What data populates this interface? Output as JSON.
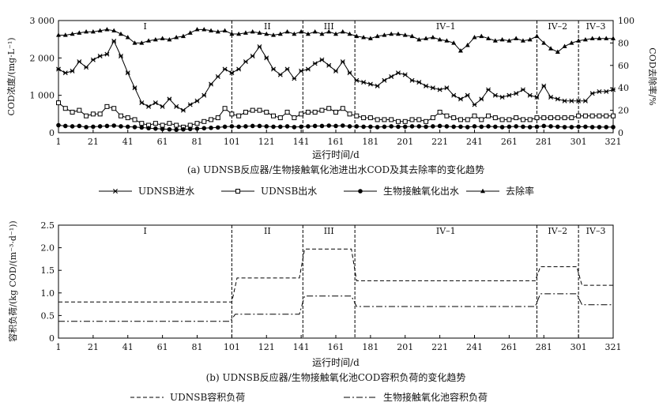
{
  "chart_data": [
    {
      "type": "line",
      "caption": "(a) UDNSB反应器/生物接触氧化池进出水COD及其去除率的变化趋势",
      "xlabel": "运行时间/d",
      "ylabel": "COD浓度/(mg·L⁻¹)",
      "ylabel_right": "COD去除率/%",
      "xlim": [
        1,
        321
      ],
      "ylim": [
        0,
        3000
      ],
      "ylim_right": [
        0,
        100
      ],
      "x_ticks": [
        "1",
        "21",
        "41",
        "61",
        "81",
        "101",
        "121",
        "141",
        "161",
        "181",
        "201",
        "221",
        "241",
        "261",
        "281",
        "301",
        "321"
      ],
      "y_ticks": [
        "0",
        "1 000",
        "2 000",
        "3 000"
      ],
      "y_ticks_right": [
        "0",
        "20",
        "40",
        "60",
        "80",
        "100"
      ],
      "phases": [
        {
          "label": "I",
          "start": 1,
          "end": 101
        },
        {
          "label": "II",
          "start": 101,
          "end": 142
        },
        {
          "label": "III",
          "start": 142,
          "end": 172
        },
        {
          "label": "IV–1",
          "start": 172,
          "end": 277
        },
        {
          "label": "IV–2",
          "start": 277,
          "end": 301
        },
        {
          "label": "IV–3",
          "start": 301,
          "end": 321
        }
      ],
      "series": [
        {
          "name": "UDNSB进水",
          "axis": "left",
          "marker": "x",
          "x": [
            1,
            5,
            9,
            13,
            17,
            21,
            25,
            29,
            33,
            37,
            41,
            45,
            49,
            53,
            57,
            61,
            65,
            69,
            73,
            77,
            81,
            85,
            89,
            93,
            97,
            101,
            105,
            109,
            113,
            117,
            121,
            125,
            129,
            133,
            137,
            141,
            145,
            149,
            153,
            157,
            161,
            165,
            169,
            173,
            177,
            181,
            185,
            189,
            193,
            197,
            201,
            205,
            209,
            213,
            217,
            221,
            225,
            229,
            233,
            237,
            241,
            245,
            249,
            253,
            257,
            261,
            265,
            269,
            273,
            277,
            281,
            285,
            289,
            293,
            297,
            301,
            305,
            309,
            313,
            317,
            321
          ],
          "values": [
            1700,
            1600,
            1650,
            1900,
            1750,
            1950,
            2050,
            2100,
            2450,
            2050,
            1600,
            1200,
            800,
            700,
            800,
            700,
            900,
            700,
            600,
            750,
            850,
            1000,
            1300,
            1500,
            1700,
            1600,
            1700,
            1900,
            2050,
            2300,
            2000,
            1700,
            1550,
            1700,
            1450,
            1650,
            1700,
            1850,
            1950,
            1800,
            1650,
            1900,
            1600,
            1400,
            1350,
            1300,
            1250,
            1400,
            1500,
            1600,
            1550,
            1400,
            1350,
            1250,
            1200,
            1150,
            1200,
            1000,
            900,
            1000,
            750,
            900,
            1150,
            1000,
            950,
            1000,
            1050,
            1150,
            1000,
            950,
            1250,
            950,
            900,
            850,
            850,
            850,
            850,
            1050,
            1100,
            1100,
            1150
          ]
        },
        {
          "name": "UDNSB出水",
          "axis": "left",
          "marker": "square",
          "x": [
            1,
            5,
            9,
            13,
            17,
            21,
            25,
            29,
            33,
            37,
            41,
            45,
            49,
            53,
            57,
            61,
            65,
            69,
            73,
            77,
            81,
            85,
            89,
            93,
            97,
            101,
            105,
            109,
            113,
            117,
            121,
            125,
            129,
            133,
            137,
            141,
            145,
            149,
            153,
            157,
            161,
            165,
            169,
            173,
            177,
            181,
            185,
            189,
            193,
            197,
            201,
            205,
            209,
            213,
            217,
            221,
            225,
            229,
            233,
            237,
            241,
            245,
            249,
            253,
            257,
            261,
            265,
            269,
            273,
            277,
            281,
            285,
            289,
            293,
            297,
            301,
            305,
            309,
            313,
            317,
            321
          ],
          "values": [
            800,
            650,
            550,
            600,
            450,
            500,
            500,
            700,
            650,
            450,
            400,
            350,
            250,
            200,
            250,
            200,
            250,
            200,
            150,
            200,
            250,
            300,
            350,
            400,
            650,
            500,
            450,
            550,
            600,
            600,
            550,
            450,
            400,
            550,
            400,
            500,
            550,
            550,
            600,
            650,
            550,
            650,
            500,
            450,
            400,
            400,
            350,
            350,
            350,
            300,
            300,
            350,
            350,
            300,
            400,
            550,
            450,
            400,
            350,
            350,
            450,
            350,
            450,
            400,
            350,
            350,
            400,
            350,
            350,
            400,
            400,
            400,
            400,
            400,
            400,
            450,
            450,
            450,
            450,
            450,
            450
          ]
        },
        {
          "name": "生物接触氧化出水",
          "axis": "left",
          "marker": "circle",
          "x": [
            1,
            5,
            9,
            13,
            17,
            21,
            25,
            29,
            33,
            37,
            41,
            45,
            49,
            53,
            57,
            61,
            65,
            69,
            73,
            77,
            81,
            85,
            89,
            93,
            97,
            101,
            105,
            109,
            113,
            117,
            121,
            125,
            129,
            133,
            137,
            141,
            145,
            149,
            153,
            157,
            161,
            165,
            169,
            173,
            177,
            181,
            185,
            189,
            193,
            197,
            201,
            205,
            209,
            213,
            217,
            221,
            225,
            229,
            233,
            237,
            241,
            245,
            249,
            253,
            257,
            261,
            265,
            269,
            273,
            277,
            281,
            285,
            289,
            293,
            297,
            301,
            305,
            309,
            313,
            317,
            321
          ],
          "values": [
            200,
            180,
            170,
            180,
            150,
            160,
            170,
            180,
            190,
            170,
            160,
            150,
            140,
            120,
            110,
            100,
            90,
            80,
            90,
            100,
            110,
            120,
            130,
            140,
            160,
            170,
            160,
            170,
            180,
            180,
            170,
            160,
            160,
            170,
            150,
            160,
            170,
            180,
            180,
            190,
            180,
            190,
            170,
            170,
            160,
            160,
            150,
            160,
            170,
            160,
            160,
            170,
            170,
            160,
            170,
            180,
            170,
            160,
            160,
            150,
            170,
            160,
            170,
            160,
            150,
            160,
            170,
            160,
            150,
            160,
            180,
            170,
            160,
            150,
            150,
            160,
            160,
            150,
            150,
            150,
            150
          ]
        },
        {
          "name": "去除率",
          "axis": "right",
          "marker": "triangle",
          "x": [
            1,
            5,
            9,
            13,
            17,
            21,
            25,
            29,
            33,
            37,
            41,
            45,
            49,
            53,
            57,
            61,
            65,
            69,
            73,
            77,
            81,
            85,
            89,
            93,
            97,
            101,
            105,
            109,
            113,
            117,
            121,
            125,
            129,
            133,
            137,
            141,
            145,
            149,
            153,
            157,
            161,
            165,
            169,
            173,
            177,
            181,
            185,
            189,
            193,
            197,
            201,
            205,
            209,
            213,
            217,
            221,
            225,
            229,
            233,
            237,
            241,
            245,
            249,
            253,
            257,
            261,
            265,
            269,
            273,
            277,
            281,
            285,
            289,
            293,
            297,
            301,
            305,
            309,
            313,
            317,
            321
          ],
          "values": [
            87,
            87,
            88,
            89,
            90,
            90,
            91,
            92,
            91,
            88,
            85,
            80,
            80,
            82,
            83,
            84,
            83,
            85,
            86,
            89,
            92,
            92,
            91,
            90,
            91,
            88,
            88,
            89,
            90,
            89,
            88,
            87,
            88,
            90,
            88,
            90,
            88,
            90,
            88,
            90,
            88,
            90,
            88,
            86,
            85,
            84,
            86,
            87,
            88,
            88,
            87,
            86,
            83,
            84,
            85,
            83,
            82,
            80,
            73,
            78,
            85,
            86,
            84,
            82,
            83,
            82,
            84,
            82,
            83,
            86,
            80,
            75,
            72,
            77,
            80,
            82,
            83,
            84,
            84,
            84,
            84
          ]
        }
      ]
    },
    {
      "type": "line",
      "caption": "(b) UDNSB反应器/生物接触氧化池COD容积负荷的变化趋势",
      "xlabel": "运行时间/d",
      "ylabel": "容积负荷/(kg COD/(m⁻³·d⁻¹))",
      "xlim": [
        1,
        321
      ],
      "ylim": [
        0,
        2.5
      ],
      "x_ticks": [
        "1",
        "21",
        "41",
        "61",
        "81",
        "101",
        "121",
        "141",
        "161",
        "181",
        "201",
        "221",
        "241",
        "261",
        "281",
        "301",
        "321"
      ],
      "y_ticks": [
        "0",
        "0.5",
        "1.0",
        "1.5",
        "2.0",
        "2.5"
      ],
      "phases": [
        {
          "label": "I",
          "start": 1,
          "end": 101
        },
        {
          "label": "II",
          "start": 101,
          "end": 142
        },
        {
          "label": "III",
          "start": 142,
          "end": 172
        },
        {
          "label": "IV–1",
          "start": 172,
          "end": 277
        },
        {
          "label": "IV–2",
          "start": 277,
          "end": 301
        },
        {
          "label": "IV–3",
          "start": 301,
          "end": 321
        }
      ],
      "series": [
        {
          "name": "UDNSB容积负荷",
          "dash": "dashed",
          "x": [
            1,
            101,
            104,
            140,
            143,
            170,
            173,
            276,
            279,
            300,
            303,
            321
          ],
          "values": [
            0.8,
            0.8,
            1.33,
            1.33,
            1.97,
            1.97,
            1.27,
            1.27,
            1.58,
            1.58,
            1.17,
            1.17
          ]
        },
        {
          "name": "生物接触氧化池容积负荷",
          "dash": "dashdot",
          "x": [
            1,
            100,
            103,
            140,
            143,
            170,
            173,
            276,
            279,
            300,
            303,
            321
          ],
          "values": [
            0.37,
            0.37,
            0.53,
            0.53,
            0.93,
            0.93,
            0.7,
            0.7,
            0.98,
            0.98,
            0.74,
            0.74
          ]
        }
      ]
    }
  ]
}
